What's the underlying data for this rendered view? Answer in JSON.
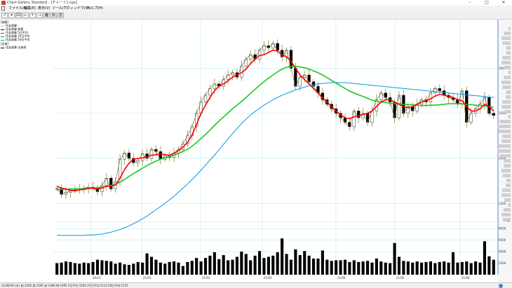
{
  "window": {
    "title": "Chart Gallery Standard - [チャート1.cgx]",
    "minimize": "–",
    "maximize": "□",
    "close": "✕"
  },
  "menu": [
    "ファイル(F)",
    "編集(E)",
    "表示(V)",
    "ツール(T)",
    "ウィンドウ(W)",
    "ヘルプ(H)"
  ],
  "toolbar": {
    "buttons": [
      {
        "name": "chart-tool-icon",
        "glyph": "↗"
      },
      {
        "name": "pointer-tool-icon",
        "glyph": "▾"
      },
      {
        "name": "cut-icon",
        "glyph": "⌧"
      },
      {
        "name": "back-icon",
        "glyph": "←"
      },
      {
        "name": "add-icon",
        "glyph": "+"
      },
      {
        "name": "forward-icon",
        "glyph": "→"
      },
      {
        "name": "table-icon",
        "glyph": "▦"
      },
      {
        "name": "grid-icon",
        "glyph": "▤"
      },
      {
        "name": "tile-icon",
        "glyph": "▥"
      }
    ]
  },
  "legend": {
    "price_header": "[価格]",
    "items": [
      {
        "label": "住友商事",
        "color": "#c0c0c0"
      },
      {
        "label": "住友商事 終値",
        "color": "#000000"
      },
      {
        "label": "住友商事 5日平均",
        "color": "#ff0000"
      },
      {
        "label": "住友商事 25日平均",
        "color": "#00b400"
      },
      {
        "label": "住友商事 50日平均",
        "color": "#1aa0e6"
      }
    ],
    "volume_header": "[出来]",
    "volume_items": [
      {
        "label": "住友商事 出来高",
        "color": "#000000"
      }
    ]
  },
  "colors": {
    "ma5": "#ff0000",
    "ma25": "#1ec81e",
    "ma50": "#1aa0e6",
    "grid": "#b8f0f0",
    "candle_up_fill": "#ffffff",
    "candle_down_fill": "#000000",
    "wick": "#8a7a2a",
    "close_line": "#6a6a2a",
    "volume": "#000000"
  },
  "chart_data": {
    "type": "candlestick",
    "price_axis": {
      "ticks": [
        "1600",
        "1500",
        "1400",
        "1300"
      ]
    },
    "volume_axis": {
      "ticks": [
        "8000",
        "6000",
        "4000",
        "2000"
      ]
    },
    "x_ticks": [
      "20/12",
      "21/01",
      "21/02",
      "21/03",
      "21/04",
      "21/05",
      "21/06"
    ],
    "closes": [
      1333,
      1320,
      1324,
      1328,
      1330,
      1332,
      1334,
      1336,
      1334,
      1326,
      1340,
      1356,
      1332,
      1348,
      1398,
      1412,
      1400,
      1390,
      1395,
      1410,
      1400,
      1420,
      1415,
      1398,
      1405,
      1402,
      1412,
      1420,
      1432,
      1450,
      1470,
      1500,
      1525,
      1540,
      1555,
      1565,
      1560,
      1575,
      1585,
      1590,
      1580,
      1605,
      1620,
      1630,
      1620,
      1640,
      1650,
      1645,
      1655,
      1640,
      1625,
      1640,
      1600,
      1560,
      1580,
      1585,
      1570,
      1560,
      1545,
      1530,
      1520,
      1510,
      1500,
      1490,
      1480,
      1470,
      1505,
      1490,
      1500,
      1480,
      1505,
      1530,
      1545,
      1535,
      1525,
      1490,
      1540,
      1500,
      1515,
      1505,
      1520,
      1530,
      1525,
      1545,
      1555,
      1550,
      1540,
      1535,
      1530,
      1520,
      1550,
      1480,
      1500,
      1510,
      1520,
      1535,
      1500,
      1495
    ],
    "ma5": [
      1338,
      1334,
      1332,
      1329,
      1328,
      1330,
      1331,
      1333,
      1334,
      1332,
      1334,
      1338,
      1338,
      1341,
      1356,
      1375,
      1389,
      1398,
      1400,
      1401,
      1403,
      1407,
      1408,
      1410,
      1408,
      1407,
      1411,
      1417,
      1425,
      1435,
      1452,
      1475,
      1500,
      1518,
      1535,
      1550,
      1560,
      1565,
      1572,
      1580,
      1585,
      1590,
      1598,
      1610,
      1620,
      1628,
      1630,
      1635,
      1640,
      1638,
      1630,
      1625,
      1615,
      1600,
      1585,
      1575,
      1565,
      1555,
      1545,
      1535,
      1525,
      1515,
      1505,
      1497,
      1490,
      1488,
      1492,
      1495,
      1497,
      1500,
      1505,
      1515,
      1525,
      1530,
      1530,
      1525,
      1520,
      1515,
      1512,
      1515,
      1520,
      1525,
      1528,
      1532,
      1538,
      1542,
      1540,
      1538,
      1535,
      1530,
      1528,
      1515,
      1505,
      1505,
      1510,
      1520,
      1515,
      1505
    ],
    "ma25": [
      1330,
      1331,
      1331,
      1332,
      1332,
      1332,
      1333,
      1334,
      1334,
      1335,
      1336,
      1338,
      1340,
      1342,
      1347,
      1353,
      1360,
      1366,
      1372,
      1378,
      1384,
      1389,
      1394,
      1398,
      1401,
      1404,
      1407,
      1411,
      1415,
      1420,
      1427,
      1435,
      1444,
      1453,
      1463,
      1473,
      1483,
      1492,
      1501,
      1510,
      1518,
      1526,
      1535,
      1544,
      1553,
      1562,
      1570,
      1578,
      1585,
      1592,
      1598,
      1602,
      1604,
      1604,
      1603,
      1601,
      1598,
      1594,
      1590,
      1585,
      1579,
      1573,
      1567,
      1561,
      1555,
      1549,
      1545,
      1541,
      1537,
      1533,
      1529,
      1527,
      1525,
      1524,
      1522,
      1521,
      1521,
      1520,
      1519,
      1519,
      1518,
      1517,
      1517,
      1518,
      1518,
      1519,
      1520,
      1521,
      1521,
      1521,
      1521,
      1520,
      1519,
      1518,
      1517,
      1516,
      1515,
      1513
    ],
    "ma50": [
      1230,
      1229,
      1229,
      1229,
      1229,
      1229,
      1229,
      1230,
      1230,
      1231,
      1232,
      1234,
      1236,
      1239,
      1242,
      1246,
      1250,
      1255,
      1260,
      1266,
      1272,
      1279,
      1286,
      1293,
      1300,
      1308,
      1316,
      1325,
      1334,
      1343,
      1353,
      1363,
      1374,
      1385,
      1396,
      1407,
      1419,
      1431,
      1443,
      1455,
      1466,
      1477,
      1487,
      1496,
      1504,
      1511,
      1518,
      1524,
      1530,
      1535,
      1540,
      1544,
      1548,
      1552,
      1555,
      1558,
      1561,
      1563,
      1565,
      1566,
      1567,
      1568,
      1568,
      1568,
      1568,
      1567,
      1566,
      1565,
      1564,
      1563,
      1562,
      1561,
      1560,
      1559,
      1558,
      1557,
      1556,
      1555,
      1554,
      1553,
      1552,
      1551,
      1550,
      1549,
      1548,
      1547,
      1546,
      1545,
      1544,
      1543,
      1542,
      1541,
      1540,
      1539,
      1538,
      1537,
      1536,
      1535
    ],
    "volumes": [
      2000,
      2100,
      2300,
      2200,
      2000,
      1900,
      2100,
      2000,
      2200,
      2600,
      2500,
      2400,
      2300,
      1900,
      2100,
      1800,
      1700,
      1900,
      2200,
      2100,
      3700,
      3100,
      2600,
      2100,
      1900,
      2200,
      2300,
      2100,
      1500,
      2200,
      2400,
      2900,
      2300,
      2900,
      3300,
      3900,
      2700,
      3400,
      2500,
      2600,
      3100,
      4000,
      3600,
      2500,
      3300,
      4100,
      2900,
      3100,
      3300,
      3900,
      6300,
      3600,
      2600,
      4400,
      3400,
      4100,
      3300,
      2800,
      2800,
      4200,
      2600,
      2400,
      2500,
      2500,
      2600,
      2200,
      2500,
      2200,
      2300,
      2400,
      2100,
      2800,
      2300,
      2100,
      2000,
      5500,
      3100,
      2400,
      2300,
      2100,
      2300,
      2100,
      2200,
      2300,
      2000,
      2200,
      2300,
      2100,
      3900,
      2100,
      2200,
      2300,
      2000,
      2300,
      2100,
      5800,
      3200,
      2600
    ]
  },
  "status": "21/06/30 (水) 始:1500 高:1505 安:1486 終:1495 5日平均:1505 25日平均:1513 50日平均:1535"
}
